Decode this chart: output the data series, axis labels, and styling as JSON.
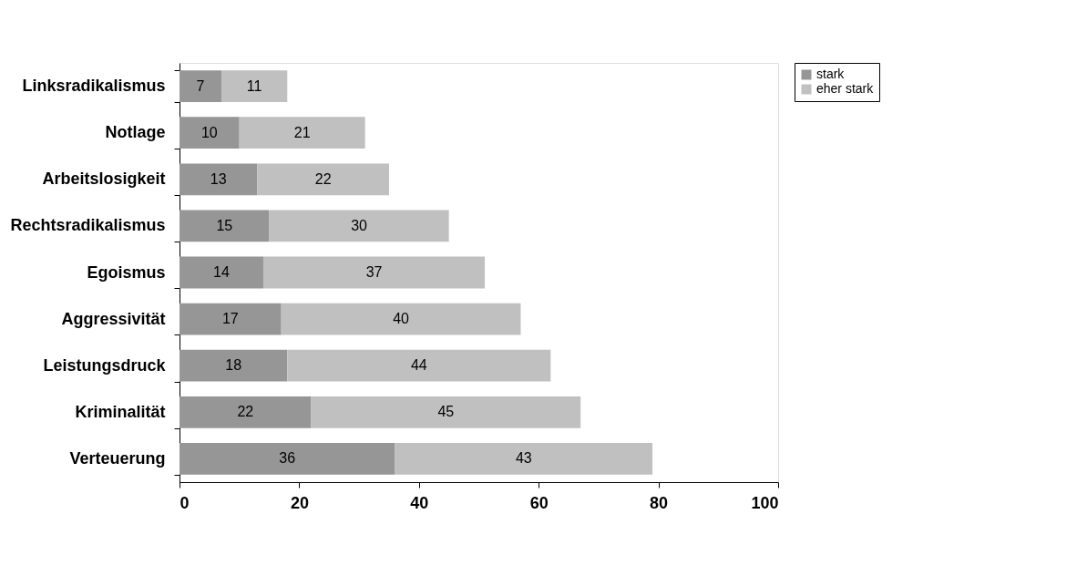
{
  "chart_data": {
    "type": "bar",
    "orientation": "horizontal",
    "stacked": true,
    "data_labels": true,
    "legend": "right",
    "grid": false,
    "categories": [
      "Linksradikalismus",
      "Notlage",
      "Arbeitslosigkeit",
      "Rechtsradikalismus",
      "Egoismus",
      "Aggressivität",
      "Leistungsdruck",
      "Kriminalität",
      "Verteuerung"
    ],
    "series": [
      {
        "name": "stark",
        "color": "#969696",
        "values": [
          7,
          10,
          13,
          15,
          14,
          17,
          18,
          22,
          36
        ]
      },
      {
        "name": "eher stark",
        "color": "#c0c0c0",
        "values": [
          11,
          21,
          22,
          30,
          37,
          40,
          44,
          45,
          43
        ]
      }
    ],
    "xlim": [
      0,
      100
    ],
    "xticks": [
      0,
      20,
      40,
      60,
      80,
      100
    ]
  }
}
